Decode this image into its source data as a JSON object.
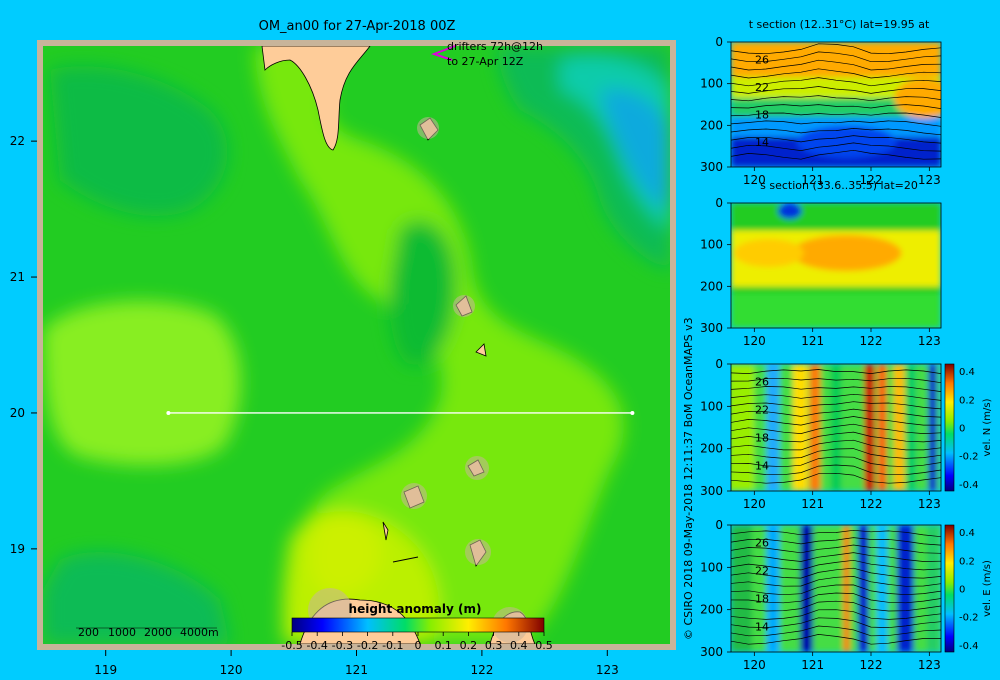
{
  "map": {
    "title": "OM_an00 for 27-Apr-2018 00Z",
    "drifters_line1": "drifters 72h@12h",
    "drifters_line2": "to 27-Apr 12Z",
    "scale_labels": [
      "200",
      "1000",
      "2000",
      "4000m"
    ],
    "lon_ticks": [
      "119",
      "120",
      "121",
      "122",
      "123"
    ],
    "lat_ticks": [
      "22",
      "21",
      "20",
      "19"
    ],
    "colorbar_title": "height anomaly (m)",
    "colorbar_ticks": [
      "-0.5",
      "-0.4",
      "-0.3",
      "-0.2",
      "-0.1",
      "0",
      "0.1",
      "0.2",
      "0.3",
      "0.4",
      "0.5"
    ]
  },
  "credit": "© CSIRO 2018   09-May-2018 12:11:37 BoM OceanMAPS v3",
  "sections": [
    {
      "title": "t section (12..31°C) lat=19.95 at",
      "contours": [
        "26",
        "22",
        "18",
        "14"
      ],
      "cbar": false
    },
    {
      "title": "s section (33.6..35.5) lat=20",
      "contours": [],
      "cbar": false
    },
    {
      "title": "",
      "contours": [
        "26",
        "22",
        "18",
        "14"
      ],
      "cbar": true,
      "cbar_label": "vel. N (m/s)",
      "cbar_ticks": [
        "0.4",
        "0.2",
        "0",
        "-0.2",
        "-0.4"
      ]
    },
    {
      "title": "",
      "contours": [
        "26",
        "22",
        "18",
        "14"
      ],
      "cbar": true,
      "cbar_label": "vel. E (m/s)",
      "cbar_ticks": [
        "0.4",
        "0.2",
        "0",
        "-0.2",
        "-0.4"
      ]
    }
  ],
  "section_axes": {
    "x_ticks": [
      "120",
      "121",
      "122",
      "123"
    ],
    "y_ticks": [
      "0",
      "100",
      "200",
      "300"
    ]
  },
  "chart_data": [
    {
      "type": "heatmap",
      "title": "OM_an00 for 27-Apr-2018 00Z",
      "variable": "height anomaly (m)",
      "x_range": [
        118.5,
        123.5
      ],
      "y_range": [
        18.3,
        22.7
      ],
      "color_range": [
        -0.5,
        0.5
      ],
      "transect": {
        "lat": 20,
        "lon": [
          119.5,
          123.2
        ]
      }
    },
    {
      "type": "heatmap",
      "title": "t section (12..31°C) lat=19.95 at",
      "x_range": [
        119.6,
        123.2
      ],
      "y_range": [
        300,
        0
      ],
      "value_range": [
        12,
        31
      ]
    },
    {
      "type": "heatmap",
      "title": "s section (33.6..35.5) lat=20",
      "x_range": [
        119.6,
        123.2
      ],
      "y_range": [
        300,
        0
      ],
      "value_range": [
        33.6,
        35.5
      ]
    },
    {
      "type": "heatmap",
      "title": "",
      "x_range": [
        119.6,
        123.2
      ],
      "y_range": [
        300,
        0
      ],
      "color_range": [
        -0.45,
        0.45
      ],
      "colorbar_label": "vel. N (m/s)"
    },
    {
      "type": "heatmap",
      "title": "",
      "x_range": [
        119.6,
        123.2
      ],
      "y_range": [
        300,
        0
      ],
      "color_range": [
        -0.45,
        0.45
      ],
      "colorbar_label": "vel. E (m/s)"
    }
  ]
}
